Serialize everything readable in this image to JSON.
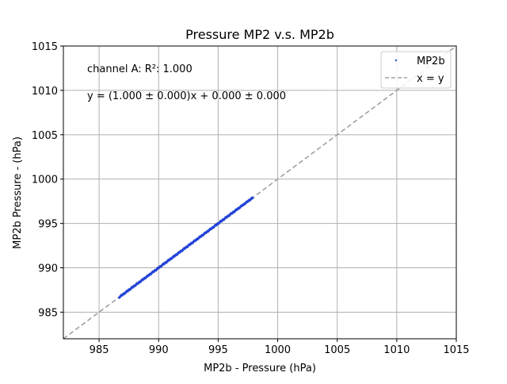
{
  "chart_data": {
    "type": "scatter",
    "title": "Pressure MP2 v.s. MP2b",
    "xlabel": "MP2b - Pressure (hPa)",
    "ylabel": "MP2b Pressure - (hPa)",
    "xlim": [
      982,
      1015
    ],
    "ylim": [
      982,
      1015
    ],
    "xticks": [
      985,
      990,
      995,
      1000,
      1005,
      1010,
      1015
    ],
    "yticks": [
      985,
      990,
      995,
      1000,
      1005,
      1010,
      1015
    ],
    "grid": true,
    "legend_placement": "top-right",
    "annotations": [
      "channel A: R²: 1.000",
      "y = (1.000 ± 0.000)x + 0.000 ± 0.000"
    ],
    "series": [
      {
        "name": "MP2b",
        "kind": "scatter",
        "color": "#1f3fd6",
        "x_range": [
          986.7,
          997.9
        ],
        "note_points": "dense points along y = x"
      },
      {
        "name": "x = y",
        "kind": "line",
        "color": "#a0a0a0",
        "dash": "dashed",
        "x": [
          982,
          1015
        ],
        "y": [
          982,
          1015
        ]
      }
    ]
  }
}
